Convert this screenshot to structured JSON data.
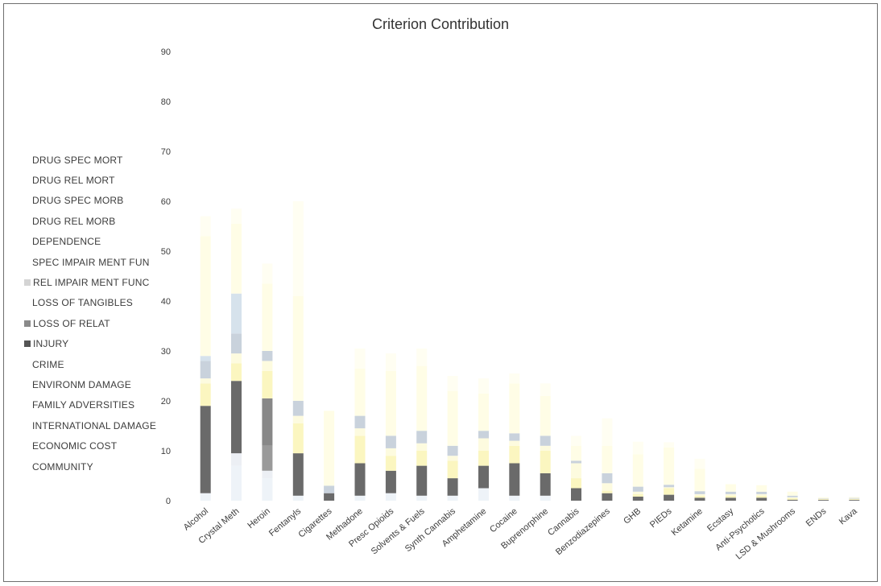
{
  "chart_data": {
    "type": "bar",
    "stacked": true,
    "title": "Criterion Contribution",
    "ylim": [
      0,
      90
    ],
    "yticks": [
      0,
      10,
      20,
      30,
      40,
      50,
      60,
      70,
      80,
      90
    ],
    "ytick_labels": [
      "0",
      "10",
      "20",
      "30",
      "40",
      "50",
      "60",
      "70",
      "80",
      "90"
    ],
    "grid": false,
    "legend_position": "left",
    "categories": [
      "Alcohol",
      "Crystal Meth",
      "Heroin",
      "Fentanyls",
      "Cigarettes",
      "Methadone",
      "Presc Opioids",
      "Solvents & Fuels",
      "Synth Cannabis",
      "Amphetamine",
      "Cocaine",
      "Buprenorphine",
      "Cannabis",
      "Benzodiazepines",
      "GHB",
      "PIEDs",
      "Ketamine",
      "Ecstasy",
      "Anti-Psychotics",
      "LSD & Mushrooms",
      "ENDs",
      "Kava"
    ],
    "series": [
      {
        "name": "DRUG SPEC MORT",
        "color": "#f2f2f2",
        "values": [
          0,
          0,
          0,
          0,
          0,
          0,
          0,
          0,
          0,
          0,
          0,
          0,
          0,
          0,
          0,
          0,
          0,
          0,
          0,
          0,
          0,
          0
        ]
      },
      {
        "name": "DRUG REL MORT",
        "color": "#f2f2f2",
        "values": [
          0,
          0,
          0,
          0,
          0,
          0,
          0,
          0,
          0,
          0,
          0,
          0,
          0,
          0,
          0,
          0,
          0,
          0,
          0,
          0,
          0,
          0
        ]
      },
      {
        "name": "DRUG SPEC MORB",
        "color": "#eef3f8",
        "values": [
          1.5,
          7,
          4.5,
          1,
          0,
          1,
          1.5,
          1,
          1,
          2.5,
          1,
          1,
          0,
          0,
          0,
          0,
          0,
          0,
          0,
          0,
          0,
          0
        ]
      },
      {
        "name": "DRUG REL MORB",
        "color": "#eceff4",
        "values": [
          0,
          2.5,
          1.5,
          0,
          0,
          0,
          0,
          0,
          0,
          0,
          0,
          0,
          0,
          0,
          0,
          0,
          0,
          0,
          0,
          0,
          0,
          0
        ]
      },
      {
        "name": "DEPENDENCE",
        "color": "#9a9a9a",
        "values": [
          0,
          0,
          5,
          0,
          0,
          0,
          0,
          0,
          0,
          0,
          0,
          0,
          0,
          0,
          0,
          0,
          0,
          0,
          0,
          0,
          0,
          0
        ]
      },
      {
        "name": "SPEC IMPAIR MENT FUN",
        "color": "#f8f8f0",
        "values": [
          0,
          0,
          0,
          0,
          0,
          0,
          0,
          0,
          0,
          0,
          0,
          0,
          0,
          0,
          0,
          0,
          0,
          0,
          0,
          0,
          0,
          0
        ]
      },
      {
        "name": "REL IMPAIR MENT FUNC",
        "color": "#d8d8d8",
        "values": [
          0,
          0,
          0,
          0,
          0,
          0,
          0,
          0,
          0,
          0,
          0,
          0,
          0,
          0,
          0,
          0,
          0,
          0,
          0,
          0,
          0,
          0
        ]
      },
      {
        "name": "LOSS OF TANGIBLES",
        "color": "#f6f6ee",
        "values": [
          0,
          0,
          0,
          0,
          0,
          0,
          0,
          0,
          0,
          0,
          0,
          0,
          0,
          0,
          0,
          0,
          0,
          0,
          0,
          0,
          0,
          0
        ]
      },
      {
        "name": "LOSS OF RELAT",
        "color": "#888888",
        "values": [
          0,
          0,
          9.5,
          0,
          0,
          0,
          0,
          0,
          0,
          0,
          0,
          0,
          0,
          0,
          0,
          0,
          0,
          0,
          0,
          0,
          0,
          0
        ]
      },
      {
        "name": "INJURY",
        "color": "#6a6a6a",
        "values": [
          17.5,
          14.5,
          0,
          8.5,
          1.5,
          6.5,
          4.5,
          6,
          3.5,
          4.5,
          6.5,
          4.5,
          2.5,
          1.5,
          0.8,
          1.2,
          0.6,
          0.6,
          0.6,
          0.2,
          0.15,
          0.15
        ]
      },
      {
        "name": "CRIME",
        "color": "#fbf6c0",
        "values": [
          4.5,
          3.5,
          5.5,
          6,
          0,
          5.5,
          3,
          3,
          3.5,
          3,
          3.5,
          4.5,
          2,
          0.5,
          0.5,
          1.3,
          0.4,
          0.4,
          0.4,
          0.3,
          0.15,
          0.15
        ]
      },
      {
        "name": "ENVIRONM DAMAGE",
        "color": "#fdfbdf",
        "values": [
          1,
          2,
          2,
          1.5,
          0,
          1.5,
          1.5,
          1.5,
          1,
          2.5,
          1,
          1,
          3,
          1.5,
          0.5,
          0.2,
          0.3,
          0.3,
          0.3,
          0.2,
          0.1,
          0.1
        ]
      },
      {
        "name": "FAMILY ADVERSITIES",
        "color": "#c9d2dc",
        "values": [
          3.5,
          4,
          2,
          3,
          1.5,
          2.5,
          2.5,
          2.5,
          2,
          1.5,
          1.5,
          2,
          0.5,
          2,
          1,
          0.5,
          0.6,
          0.5,
          0.5,
          0.3,
          0.1,
          0.15
        ]
      },
      {
        "name": "INTERNATIONAL DAMAGE",
        "color": "#d6e2ec",
        "values": [
          1,
          8,
          0,
          0,
          0,
          0,
          0,
          0,
          0,
          0,
          0,
          0,
          0,
          0,
          0,
          0,
          0,
          0,
          0,
          0,
          0,
          0
        ]
      },
      {
        "name": "ECONOMIC COST",
        "color": "#fffde6",
        "values": [
          24,
          14,
          13.5,
          21,
          15,
          9.5,
          13,
          13,
          11,
          7.5,
          10,
          8,
          3,
          5.5,
          6.5,
          7.5,
          4.5,
          1.5,
          1.3,
          0.8,
          0.2,
          0.2
        ]
      },
      {
        "name": "COMMUNITY",
        "color": "#fffef2",
        "values": [
          4,
          3,
          4,
          19,
          0,
          4,
          3.5,
          3.5,
          3,
          3,
          2,
          2.5,
          2,
          5.5,
          2.5,
          1,
          2,
          0,
          0,
          0,
          0,
          0
        ]
      }
    ]
  }
}
